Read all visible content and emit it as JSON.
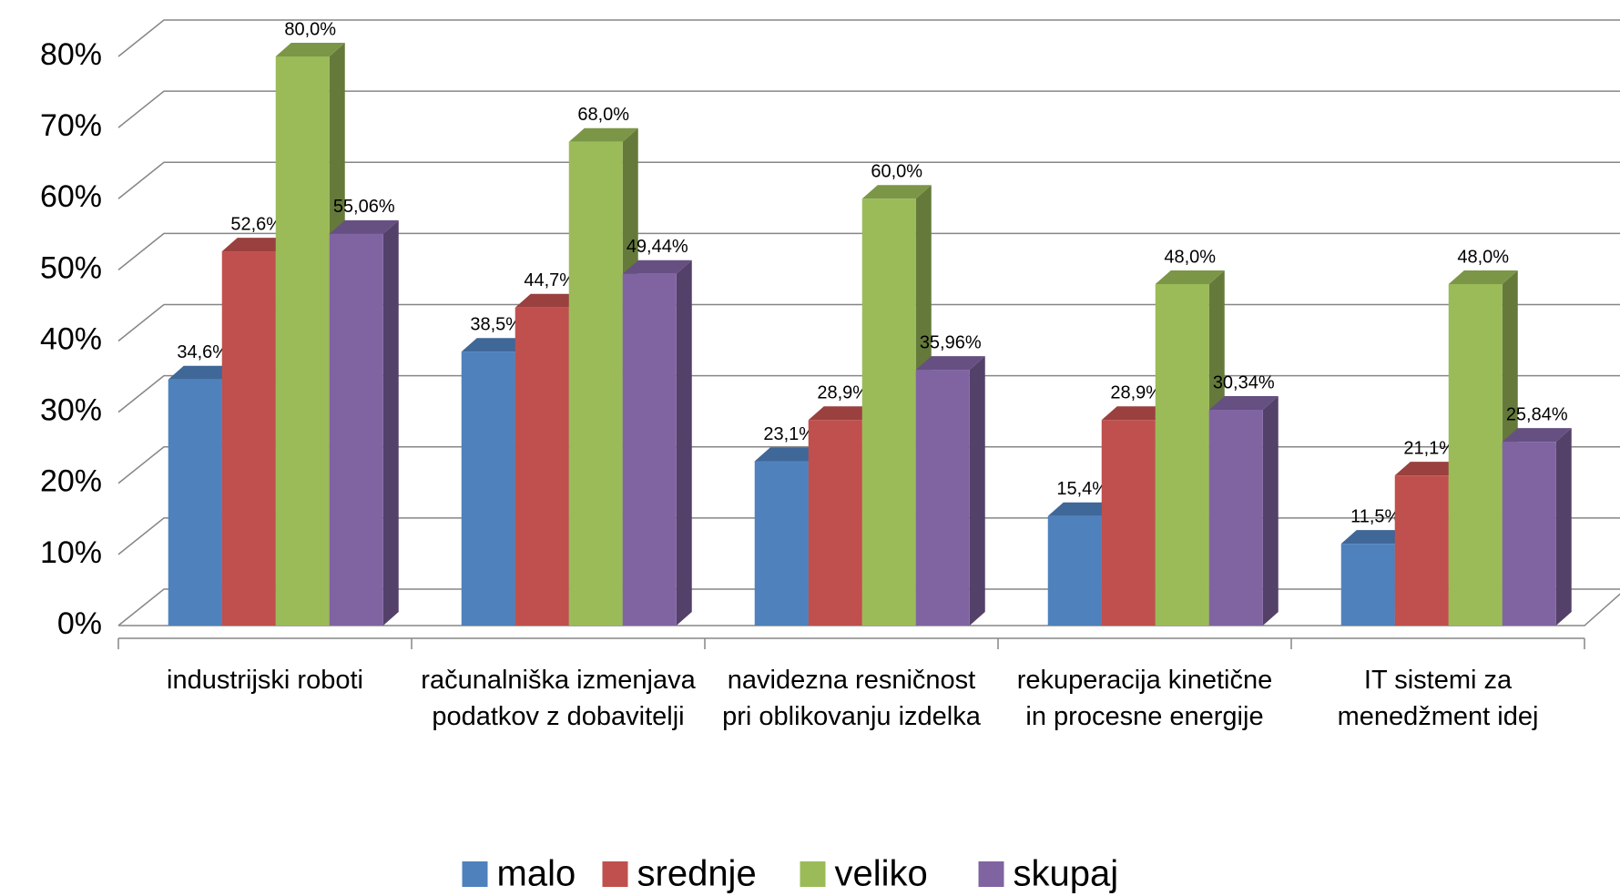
{
  "chart_data": {
    "type": "bar3d",
    "categories": [
      "industrijski roboti",
      "računalniška izmenjava podatkov z dobavitelji",
      "navidezna resničnost pri oblikovanju izdelka",
      "rekuperacija kinetične in procesne energije",
      "IT sistemi za menedžment idej"
    ],
    "series": [
      {
        "name": "malo",
        "color": "#4f81bd",
        "values": [
          34.6,
          38.5,
          23.1,
          15.4,
          11.5
        ],
        "value_labels": [
          "34,6%",
          "38,5%",
          "23,1%",
          "15,4%",
          "11,5%"
        ]
      },
      {
        "name": "srednje",
        "color": "#c0504d",
        "values": [
          52.6,
          44.7,
          28.9,
          28.9,
          21.1
        ],
        "value_labels": [
          "52,6%",
          "44,7%",
          "28,9%",
          "28,9%",
          "21,1%"
        ]
      },
      {
        "name": "veliko",
        "color": "#9bbb59",
        "values": [
          80.0,
          68.0,
          60.0,
          48.0,
          48.0
        ],
        "value_labels": [
          "80,0%",
          "68,0%",
          "60,0%",
          "48,0%",
          "48,0%"
        ]
      },
      {
        "name": "skupaj",
        "color": "#8064a2",
        "values": [
          55.06,
          49.44,
          35.96,
          30.34,
          25.84
        ],
        "value_labels": [
          "55,06%",
          "49,44%",
          "35,96%",
          "30,34%",
          "25,84%"
        ]
      }
    ],
    "ylim": [
      0,
      80
    ],
    "yticks": [
      {
        "value": 0,
        "label": "0%"
      },
      {
        "value": 10,
        "label": "10%"
      },
      {
        "value": 20,
        "label": "20%"
      },
      {
        "value": 30,
        "label": "30%"
      },
      {
        "value": 40,
        "label": "40%"
      },
      {
        "value": 50,
        "label": "50%"
      },
      {
        "value": 60,
        "label": "60%"
      },
      {
        "value": 70,
        "label": "70%"
      },
      {
        "value": 80,
        "label": "80%"
      }
    ],
    "grid": true,
    "legend": "bottom"
  }
}
